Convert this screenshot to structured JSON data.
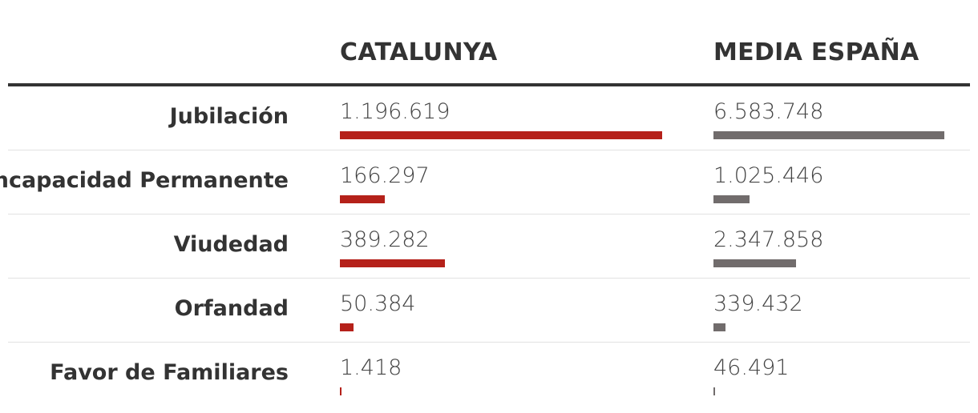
{
  "chart_data": {
    "type": "table",
    "columns": [
      "CATALUNYA",
      "MEDIA ESPAÑA"
    ],
    "categories": [
      "Jubilación",
      "Incapacidad Permanente",
      "Viudedad",
      "Orfandad",
      "Favor de Familiares"
    ],
    "series": [
      {
        "name": "CATALUNYA",
        "values": [
          1196619,
          166297,
          389282,
          50384,
          1418
        ],
        "labels": [
          "1.196.619",
          "166.297",
          "389.282",
          "50.384",
          "1.418"
        ],
        "color": "#b5211a"
      },
      {
        "name": "MEDIA ESPAÑA",
        "values": [
          6583748,
          1025446,
          2347858,
          339432,
          46491
        ],
        "labels": [
          "6.583.748",
          "1.025.446",
          "2.347.858",
          "339.432",
          "46.491"
        ],
        "color": "#716c6c"
      }
    ]
  }
}
